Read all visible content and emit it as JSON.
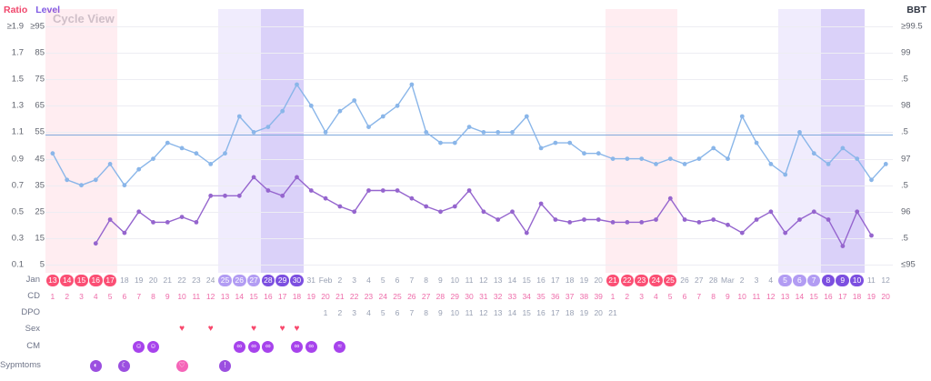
{
  "title": "Cycle View",
  "axes": {
    "left_header_ratio": "Ratio",
    "left_header_level": "Level",
    "right_header": "BBT",
    "ratio_ticks": [
      "≥1.9",
      "1.7",
      "1.5",
      "1.3",
      "1.1",
      "0.9",
      "0.7",
      "0.5",
      "0.3",
      "0.1"
    ],
    "level_ticks": [
      "≥95",
      "85",
      "75",
      "65",
      "55",
      "45",
      "35",
      "25",
      "15",
      "5"
    ],
    "bbt_ticks": [
      "≥99.5",
      "99",
      ".5",
      "98",
      ".5",
      "97",
      ".5",
      "96",
      ".5",
      "≤95"
    ]
  },
  "row_labels": {
    "month": "Jan",
    "cd": "CD",
    "dpo": "DPO",
    "sex": "Sex",
    "cm": "CM",
    "symptoms": "Sypmtoms"
  },
  "colors": {
    "period_pill": "#fb4f74",
    "fertile_light_pill": "#b29cf3",
    "fertile_dark_pill": "#7c4fe0",
    "period_band": "rgba(251,79,116,0.10)",
    "fertile_light_band": "rgba(134,102,236,0.12)",
    "fertile_dark_band": "rgba(134,102,236,0.30)",
    "bbt_line": "#8ab6e9",
    "level_line": "#9565ce",
    "coverline": "#7fa9dc",
    "heart": "#f8486c",
    "cm_icon": "#a743ec",
    "date_text": "#98a0b3",
    "cd_text": "#ee6ba9",
    "dpo_text": "#98a0b3"
  },
  "chart_data": {
    "type": "line",
    "day_labels": [
      "13",
      "14",
      "15",
      "16",
      "17",
      "18",
      "19",
      "20",
      "21",
      "22",
      "23",
      "24",
      "25",
      "26",
      "27",
      "28",
      "29",
      "30",
      "31",
      "Feb",
      "2",
      "3",
      "4",
      "5",
      "6",
      "7",
      "8",
      "9",
      "10",
      "11",
      "12",
      "13",
      "14",
      "15",
      "16",
      "17",
      "18",
      "19",
      "20",
      "21",
      "22",
      "23",
      "24",
      "25",
      "26",
      "27",
      "28",
      "Mar",
      "2",
      "3",
      "4",
      "5",
      "6",
      "7",
      "8",
      "9",
      "10",
      "11",
      "12"
    ],
    "cd": [
      1,
      2,
      3,
      4,
      5,
      6,
      7,
      8,
      9,
      10,
      11,
      12,
      13,
      14,
      15,
      16,
      17,
      18,
      19,
      20,
      21,
      22,
      23,
      24,
      25,
      26,
      27,
      28,
      29,
      30,
      31,
      32,
      33,
      34,
      35,
      36,
      37,
      38,
      39,
      1,
      2,
      3,
      4,
      5,
      6,
      7,
      8,
      9,
      10,
      11,
      12,
      13,
      14,
      15,
      16,
      17,
      18,
      19,
      20
    ],
    "dpo_start_index": 19,
    "dpo_values": [
      1,
      2,
      3,
      4,
      5,
      6,
      7,
      8,
      9,
      10,
      11,
      12,
      13,
      14,
      15,
      16,
      17,
      18,
      19,
      20,
      21
    ],
    "bands": [
      {
        "start": 0,
        "end": 4,
        "kind": "period"
      },
      {
        "start": 12,
        "end": 14,
        "kind": "fertile-light"
      },
      {
        "start": 15,
        "end": 17,
        "kind": "fertile-dark"
      },
      {
        "start": 39,
        "end": 43,
        "kind": "period"
      },
      {
        "start": 51,
        "end": 53,
        "kind": "fertile-light"
      },
      {
        "start": 54,
        "end": 56,
        "kind": "fertile-dark"
      }
    ],
    "left_axis_ratio_range": [
      0.1,
      1.9
    ],
    "left_axis_level_range": [
      5,
      95
    ],
    "right_axis_bbt_range": [
      95,
      99.5
    ],
    "coverline_bbt": 97.45,
    "series": [
      {
        "name": "BBT",
        "axis": "bbt",
        "color": "#8ab6e9",
        "values": [
          97.1,
          96.6,
          96.5,
          96.6,
          96.9,
          96.5,
          96.8,
          97.0,
          97.3,
          97.2,
          97.1,
          96.9,
          97.1,
          97.8,
          97.5,
          97.6,
          97.9,
          98.4,
          98.0,
          97.5,
          97.9,
          98.1,
          97.6,
          97.8,
          98.0,
          98.4,
          97.5,
          97.3,
          97.3,
          97.6,
          97.5,
          97.5,
          97.5,
          97.8,
          97.2,
          97.3,
          97.3,
          97.1,
          97.1,
          97.0,
          97.0,
          97.0,
          96.9,
          97.0,
          96.9,
          97.0,
          97.2,
          97.0,
          97.8,
          97.3,
          96.9,
          96.7,
          97.5,
          97.1,
          96.9,
          97.2,
          97.0,
          96.6,
          96.9
        ]
      },
      {
        "name": "Ratio/Level",
        "axis": "level",
        "color": "#9565ce",
        "values": [
          null,
          null,
          null,
          13,
          22,
          17,
          25,
          21,
          21,
          23,
          21,
          31,
          31,
          31,
          38,
          33,
          31,
          38,
          33,
          30,
          27,
          25,
          33,
          33,
          33,
          30,
          27,
          25,
          27,
          33,
          25,
          22,
          25,
          17,
          28,
          22,
          21,
          22,
          22,
          21,
          21,
          21,
          22,
          30,
          22,
          21,
          22,
          20,
          17,
          22,
          25,
          17,
          22,
          25,
          22,
          12,
          25,
          16,
          null
        ]
      }
    ],
    "sex_glyph": "♥",
    "sex_days": [
      9,
      11,
      14,
      16,
      17
    ],
    "cm_entries": [
      {
        "index": 6,
        "glyph": "☺"
      },
      {
        "index": 7,
        "glyph": "☺"
      },
      {
        "index": 13,
        "glyph": "∞"
      },
      {
        "index": 14,
        "glyph": "∞"
      },
      {
        "index": 15,
        "glyph": "∞"
      },
      {
        "index": 17,
        "glyph": "∞"
      },
      {
        "index": 18,
        "glyph": "∞"
      },
      {
        "index": 20,
        "glyph": "≈"
      }
    ],
    "symptom_entries": [
      {
        "index": 3,
        "glyph": "◐",
        "color": "#9b4fe0"
      },
      {
        "index": 5,
        "glyph": "☾",
        "color": "#9b4fe0"
      },
      {
        "index": 9,
        "glyph": "♡",
        "color": "#f565b8"
      },
      {
        "index": 12,
        "glyph": "!",
        "color": "#9b4fe0"
      }
    ]
  }
}
